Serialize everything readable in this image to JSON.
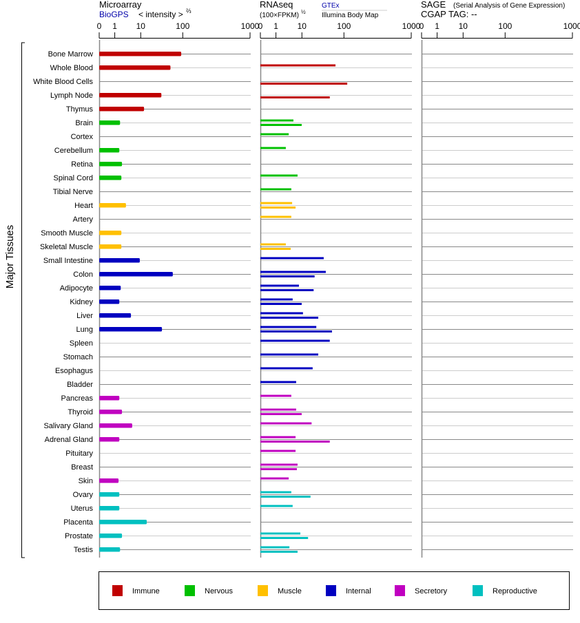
{
  "chart_data": {
    "type": "bar",
    "orientation": "horizontal",
    "y_axis_label": "Major Tissues",
    "panels": [
      {
        "id": "microarray",
        "title": "Microarray",
        "subtitle_link": "BioGPS",
        "subtitle": "< intensity >",
        "subtitle_sup": "⅔",
        "ticks": [
          "0",
          "1",
          "10",
          "100",
          "1000"
        ],
        "tick_values": [
          0,
          1,
          10,
          100,
          1000
        ]
      },
      {
        "id": "rnaseq",
        "title": "RNAseq",
        "subtitle": "(100×FPKM)",
        "subtitle_sup": "½",
        "source_top": "GTEx",
        "source_bottom": "Illumina Body Map",
        "ticks": [
          "0",
          "1",
          "10",
          "100",
          "1000"
        ],
        "tick_values": [
          0,
          1,
          10,
          100,
          1000
        ]
      },
      {
        "id": "sage",
        "title": "SAGE",
        "title_note": "(Serial Analysis of Gene Expression)",
        "subtitle": "CGAP TAG:  --",
        "ticks": [
          "0",
          "1",
          "10",
          "100",
          "1000"
        ],
        "tick_values": [
          0,
          1,
          10,
          100,
          1000
        ]
      }
    ],
    "groups": {
      "immune": {
        "label": "Immune",
        "color": "#c00000"
      },
      "nervous": {
        "label": "Nervous",
        "color": "#00c000"
      },
      "muscle": {
        "label": "Muscle",
        "color": "#ffc000"
      },
      "internal": {
        "label": "Internal",
        "color": "#0000c0"
      },
      "secretory": {
        "label": "Secretory",
        "color": "#c000c0"
      },
      "reproductive": {
        "label": "Reproductive",
        "color": "#00c0c0"
      }
    },
    "legend_order": [
      "immune",
      "nervous",
      "muscle",
      "internal",
      "secretory",
      "reproductive"
    ],
    "legend_position": "bottom",
    "tissues": [
      {
        "name": "Bone Marrow",
        "group": "immune",
        "microarray": 92,
        "gtex": null,
        "illumina": null
      },
      {
        "name": "Whole Blood",
        "group": "immune",
        "microarray": 51,
        "gtex": 63,
        "illumina": null
      },
      {
        "name": "White Blood Cells",
        "group": "immune",
        "microarray": null,
        "gtex": null,
        "illumina": 112
      },
      {
        "name": "Lymph Node",
        "group": "immune",
        "microarray": 31,
        "gtex": null,
        "illumina": 46
      },
      {
        "name": "Thymus",
        "group": "immune",
        "microarray": 12,
        "gtex": null,
        "illumina": null
      },
      {
        "name": "Brain",
        "group": "nervous",
        "microarray": 1.6,
        "gtex": 4.7,
        "illumina": 9.8
      },
      {
        "name": "Cortex",
        "group": "nervous",
        "microarray": null,
        "gtex": 3.1,
        "illumina": null
      },
      {
        "name": "Cerebellum",
        "group": "nervous",
        "microarray": 1.5,
        "gtex": 2.4,
        "illumina": null
      },
      {
        "name": "Retina",
        "group": "nervous",
        "microarray": 1.9,
        "gtex": null,
        "illumina": null
      },
      {
        "name": "Spinal Cord",
        "group": "nervous",
        "microarray": 1.8,
        "gtex": 6.8,
        "illumina": null
      },
      {
        "name": "Tibial Nerve",
        "group": "nervous",
        "microarray": null,
        "gtex": 3.9,
        "illumina": null
      },
      {
        "name": "Heart",
        "group": "muscle",
        "microarray": 2.7,
        "gtex": 4.2,
        "illumina": 5.7
      },
      {
        "name": "Artery",
        "group": "muscle",
        "microarray": null,
        "gtex": 3.9,
        "illumina": null
      },
      {
        "name": "Smooth Muscle",
        "group": "muscle",
        "microarray": 1.8,
        "gtex": null,
        "illumina": null
      },
      {
        "name": "Skeletal Muscle",
        "group": "muscle",
        "microarray": 1.8,
        "gtex": 2.4,
        "illumina": 3.7
      },
      {
        "name": "Small Intestine",
        "group": "internal",
        "microarray": 9.2,
        "gtex": 33,
        "illumina": null
      },
      {
        "name": "Colon",
        "group": "internal",
        "microarray": 58,
        "gtex": 37,
        "illumina": 20
      },
      {
        "name": "Adipocyte",
        "group": "internal",
        "microarray": 1.7,
        "gtex": 7.7,
        "illumina": 19
      },
      {
        "name": "Kidney",
        "group": "internal",
        "microarray": 1.5,
        "gtex": 4.4,
        "illumina": 9.8
      },
      {
        "name": "Liver",
        "group": "internal",
        "microarray": 4.2,
        "gtex": 10.6,
        "illumina": 24.5
      },
      {
        "name": "Lung",
        "group": "internal",
        "microarray": 32,
        "gtex": 22,
        "illumina": 52
      },
      {
        "name": "Spleen",
        "group": "internal",
        "microarray": null,
        "gtex": 46,
        "illumina": null
      },
      {
        "name": "Stomach",
        "group": "internal",
        "microarray": null,
        "gtex": 24.5,
        "illumina": null
      },
      {
        "name": "Esophagus",
        "group": "internal",
        "microarray": null,
        "gtex": 18,
        "illumina": null
      },
      {
        "name": "Bladder",
        "group": "internal",
        "microarray": null,
        "gtex": 6.0,
        "illumina": null
      },
      {
        "name": "Pancreas",
        "group": "secretory",
        "microarray": 1.5,
        "gtex": 3.9,
        "illumina": null
      },
      {
        "name": "Thyroid",
        "group": "secretory",
        "microarray": 1.9,
        "gtex": 6.0,
        "illumina": 9.8
      },
      {
        "name": "Salivary Gland",
        "group": "secretory",
        "microarray": 4.7,
        "gtex": 17,
        "illumina": null
      },
      {
        "name": "Adrenal Gland",
        "group": "secretory",
        "microarray": 1.5,
        "gtex": 5.7,
        "illumina": 46
      },
      {
        "name": "Pituitary",
        "group": "secretory",
        "microarray": null,
        "gtex": 5.7,
        "illumina": null
      },
      {
        "name": "Breast",
        "group": "secretory",
        "microarray": null,
        "gtex": 6.8,
        "illumina": 6.4
      },
      {
        "name": "Skin",
        "group": "secretory",
        "microarray": 1.4,
        "gtex": 3.1,
        "illumina": null
      },
      {
        "name": "Ovary",
        "group": "reproductive",
        "microarray": 1.5,
        "gtex": 3.9,
        "illumina": 16
      },
      {
        "name": "Uterus",
        "group": "reproductive",
        "microarray": 1.5,
        "gtex": 4.4,
        "illumina": null
      },
      {
        "name": "Placenta",
        "group": "reproductive",
        "microarray": 13.9,
        "gtex": null,
        "illumina": null
      },
      {
        "name": "Prostate",
        "group": "reproductive",
        "microarray": 1.9,
        "gtex": 8.7,
        "illumina": 14
      },
      {
        "name": "Testis",
        "group": "reproductive",
        "microarray": 1.6,
        "gtex": 3.3,
        "illumina": 6.8
      }
    ]
  }
}
